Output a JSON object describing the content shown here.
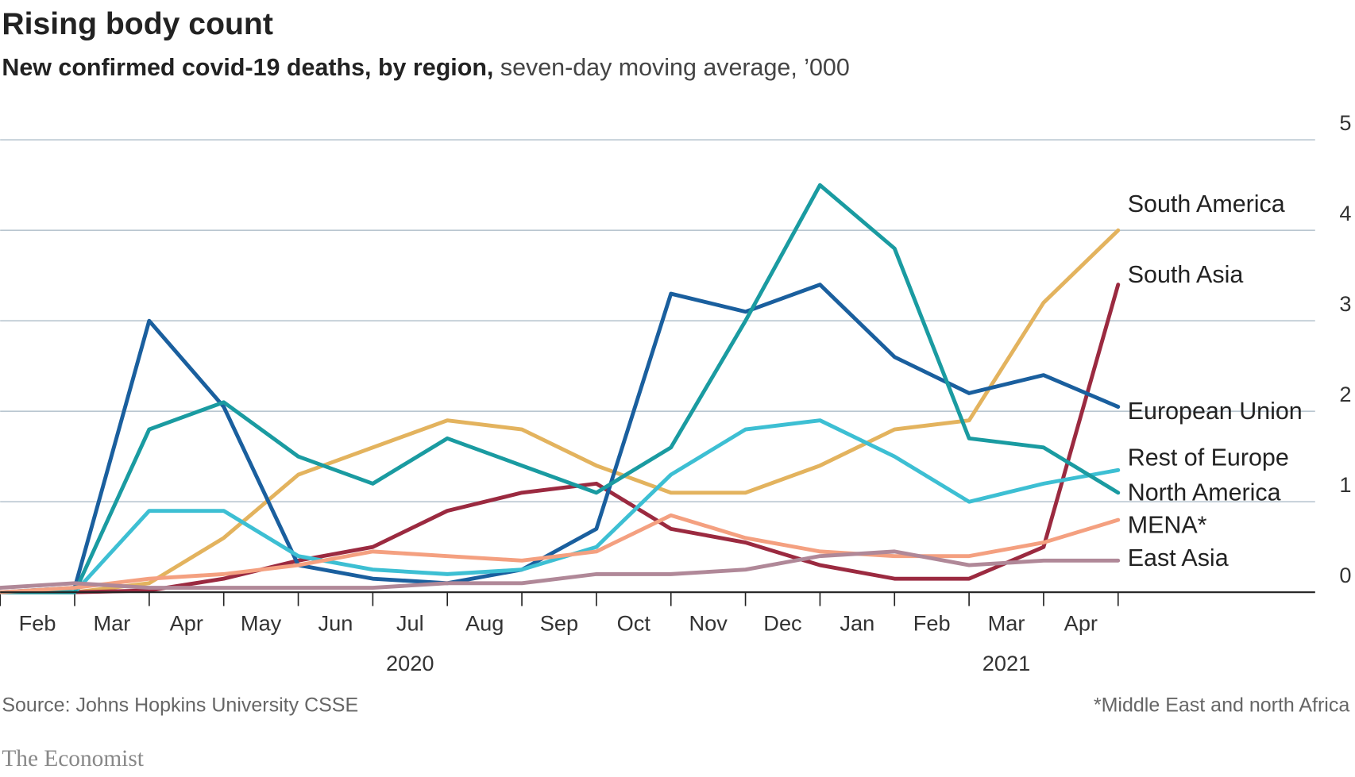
{
  "chart_data": {
    "type": "line",
    "title": "Rising body count",
    "subtitle": "New confirmed covid-19 deaths, by region,",
    "subtitle_detail": "seven-day moving average, ’000",
    "source": "Source: Johns Hopkins University CSSE",
    "footnote": "*Middle East and north Africa",
    "brand": "The Economist",
    "x": [
      "2020-02",
      "2020-03",
      "2020-04",
      "2020-05",
      "2020-06",
      "2020-07",
      "2020-08",
      "2020-09",
      "2020-10",
      "2020-11",
      "2020-12",
      "2021-01",
      "2021-02",
      "2021-03",
      "2021-04",
      "2021-05"
    ],
    "xticks": [
      {
        "value": "2020-02",
        "label": "Feb"
      },
      {
        "value": "2020-03",
        "label": "Mar"
      },
      {
        "value": "2020-04",
        "label": "Apr"
      },
      {
        "value": "2020-05",
        "label": "May"
      },
      {
        "value": "2020-06",
        "label": "Jun"
      },
      {
        "value": "2020-07",
        "label": "Jul"
      },
      {
        "value": "2020-08",
        "label": "Aug"
      },
      {
        "value": "2020-09",
        "label": "Sep"
      },
      {
        "value": "2020-10",
        "label": "Oct"
      },
      {
        "value": "2020-11",
        "label": "Nov"
      },
      {
        "value": "2020-12",
        "label": "Dec"
      },
      {
        "value": "2021-01",
        "label": "Jan"
      },
      {
        "value": "2021-02",
        "label": "Feb"
      },
      {
        "value": "2021-03",
        "label": "Mar"
      },
      {
        "value": "2021-04",
        "label": "Apr"
      }
    ],
    "year_labels": [
      {
        "value": "2020-07",
        "label": "2020"
      },
      {
        "value": "2021-03",
        "label": "2021"
      }
    ],
    "ylim": [
      0,
      5
    ],
    "yticks": [
      0,
      1,
      2,
      3,
      4,
      5
    ],
    "grid": true,
    "series": [
      {
        "name": "South America",
        "color": "#e3b35e",
        "label_color": "#e09a3c",
        "values": [
          0,
          0,
          0.1,
          0.6,
          1.3,
          1.6,
          1.9,
          1.8,
          1.4,
          1.1,
          1.1,
          1.4,
          1.8,
          1.9,
          3.2,
          4.0
        ]
      },
      {
        "name": "South Asia",
        "color": "#9b2a40",
        "label_color": "#9b2a40",
        "values": [
          0,
          0,
          0.02,
          0.15,
          0.35,
          0.5,
          0.9,
          1.1,
          1.2,
          0.7,
          0.55,
          0.3,
          0.15,
          0.15,
          0.5,
          3.4
        ]
      },
      {
        "name": "European Union",
        "color": "#1a5f9e",
        "label_color": "#1a5f9e",
        "values": [
          0,
          0.05,
          3.0,
          2.05,
          0.3,
          0.15,
          0.1,
          0.25,
          0.7,
          3.3,
          3.1,
          3.4,
          2.6,
          2.2,
          2.4,
          2.05
        ]
      },
      {
        "name": "Rest of Europe",
        "color": "#3dbfd3",
        "label_color": "#2fb4c8",
        "values": [
          0,
          0,
          0.9,
          0.9,
          0.4,
          0.25,
          0.2,
          0.25,
          0.5,
          1.3,
          1.8,
          1.9,
          1.5,
          1.0,
          1.2,
          1.35
        ]
      },
      {
        "name": "North America",
        "color": "#1a9ba1",
        "label_color": "#1a9ba1",
        "values": [
          0,
          0,
          1.8,
          2.1,
          1.5,
          1.2,
          1.7,
          1.4,
          1.1,
          1.6,
          3.0,
          4.5,
          3.8,
          1.7,
          1.6,
          1.1
        ]
      },
      {
        "name": "MENA*",
        "color": "#f4a080",
        "label_color": "#f08c6a",
        "values": [
          0,
          0.05,
          0.15,
          0.2,
          0.3,
          0.45,
          0.4,
          0.35,
          0.45,
          0.85,
          0.6,
          0.45,
          0.4,
          0.4,
          0.55,
          0.8
        ]
      },
      {
        "name": "East Asia",
        "color": "#b08898",
        "label_color": "#a67c8e",
        "values": [
          0.05,
          0.1,
          0.05,
          0.05,
          0.05,
          0.05,
          0.1,
          0.1,
          0.2,
          0.2,
          0.25,
          0.4,
          0.45,
          0.3,
          0.35,
          0.35
        ]
      }
    ]
  }
}
